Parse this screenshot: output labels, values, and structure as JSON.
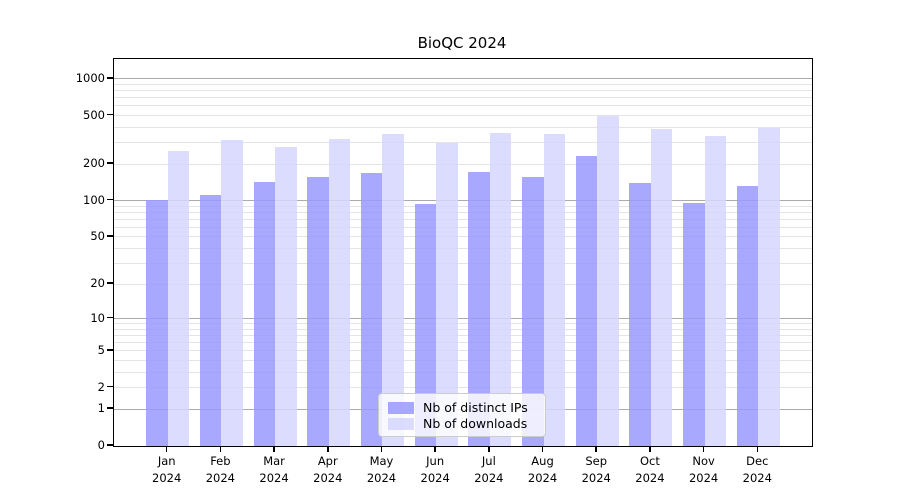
{
  "title": "BioQC 2024",
  "colors": {
    "axis": "#000000",
    "grid_major": "#ababab",
    "grid_minor": "#e4e4e4",
    "legend_bg": "rgba(255,255,255,0.8)",
    "legend_border": "#cccccc"
  },
  "legend": {
    "items": [
      "Nb of distinct IPs",
      "Nb of downloads"
    ]
  },
  "chart_data": {
    "type": "bar",
    "title": "BioQC 2024",
    "xlabel": "",
    "ylabel": "",
    "scale": "log1p",
    "categories": [
      "Jan",
      "Feb",
      "Mar",
      "Apr",
      "May",
      "Jun",
      "Jul",
      "Aug",
      "Sep",
      "Oct",
      "Nov",
      "Dec"
    ],
    "category_year": "2024",
    "series": [
      {
        "name": "Nb of distinct IPs",
        "color": "rgba(153,153,255,0.85)",
        "values": [
          102,
          111,
          142,
          156,
          170,
          94,
          173,
          156,
          235,
          139,
          96,
          131
        ]
      },
      {
        "name": "Nb of downloads",
        "color": "rgba(214,214,255,0.85)",
        "values": [
          255,
          318,
          275,
          320,
          350,
          297,
          362,
          355,
          500,
          390,
          343,
          392
        ]
      }
    ],
    "y_ticks": [
      0,
      1,
      2,
      5,
      10,
      20,
      50,
      100,
      200,
      500,
      1000
    ],
    "grid_major_values": [
      1,
      10,
      100,
      1000
    ],
    "grid_minor_values": [
      2,
      3,
      4,
      5,
      6,
      7,
      8,
      9,
      20,
      30,
      40,
      50,
      60,
      70,
      80,
      90,
      200,
      300,
      400,
      500,
      600,
      700,
      800,
      900
    ],
    "ylim": [
      0,
      1450
    ],
    "grid": true,
    "legend_position": "lower center"
  }
}
